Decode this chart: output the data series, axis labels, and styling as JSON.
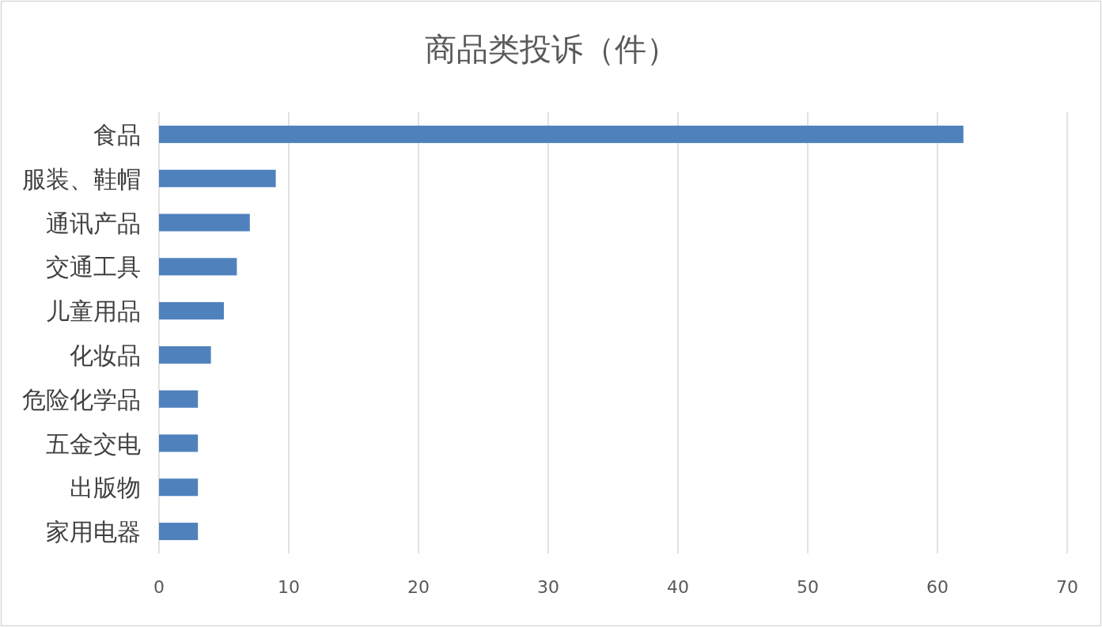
{
  "chart_data": {
    "type": "bar",
    "orientation": "horizontal",
    "title": "商品类投诉（件）",
    "categories": [
      "食品",
      "服装、鞋帽",
      "通讯产品",
      "交通工具",
      "儿童用品",
      "化妆品",
      "危险化学品",
      "五金交电",
      "出版物",
      "家用电器"
    ],
    "values": [
      62,
      9,
      7,
      6,
      5,
      4,
      3,
      3,
      3,
      3
    ],
    "color": "#4f81bd",
    "xlim": [
      0,
      70
    ],
    "xticks": [
      0,
      10,
      20,
      30,
      40,
      50,
      60,
      70
    ],
    "grid": "x"
  }
}
